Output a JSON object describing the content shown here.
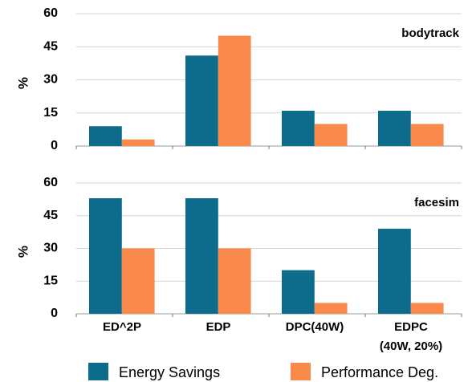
{
  "chart_data": {
    "type": "bar",
    "categories": [
      "ED^2P",
      "EDP",
      "DPC(40W)",
      "EDPC\n(40W, 20%)"
    ],
    "series": [
      {
        "name": "Energy Savings",
        "color": "#0d6b8c"
      },
      {
        "name": "Performance Deg.",
        "color": "#fa8a4c"
      }
    ],
    "grid": true,
    "panels": [
      {
        "annotation": "bodytrack",
        "ylabel": "%",
        "ylim": [
          0,
          60
        ],
        "yticks": [
          0,
          15,
          30,
          45,
          60
        ],
        "series": [
          {
            "values": [
              9,
              41,
              16,
              16
            ]
          },
          {
            "values": [
              3,
              50,
              10,
              10
            ]
          }
        ]
      },
      {
        "annotation": "facesim",
        "ylabel": "%",
        "ylim": [
          0,
          60
        ],
        "yticks": [
          0,
          15,
          30,
          45,
          60
        ],
        "series": [
          {
            "values": [
              53,
              53,
              20,
              39
            ]
          },
          {
            "values": [
              30,
              30,
              5,
              5
            ]
          }
        ]
      }
    ]
  }
}
